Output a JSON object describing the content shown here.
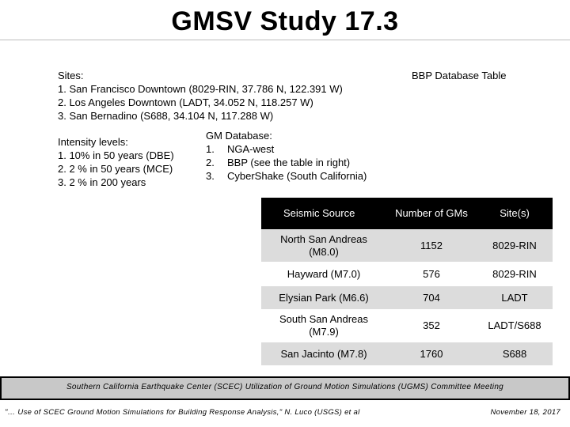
{
  "title": "GMSV Study 17.3",
  "sites": {
    "heading": "Sites:",
    "items": [
      "1. San Francisco Downtown (8029-RIN, 37.786 N, 122.391 W)",
      "2. Los Angeles Downtown (LADT, 34.052 N, 118.257 W)",
      "3. San Bernadino (S688, 34.104 N, 117.288 W)"
    ]
  },
  "intensity": {
    "heading": "Intensity levels:",
    "items": [
      "1. 10% in 50 years (DBE)",
      "2. 2 % in 50 years (MCE)",
      "3. 2 % in 200 years"
    ]
  },
  "gm_database": {
    "heading": "GM Database:",
    "items": [
      {
        "num": "1.",
        "text": "NGA-west"
      },
      {
        "num": "2.",
        "text": "BBP (see the table in right)"
      },
      {
        "num": "3.",
        "text": "CyberShake (South California)"
      }
    ]
  },
  "bbp_table": {
    "label": "BBP Database Table",
    "headers": [
      "Seismic Source",
      "Number of GMs",
      "Site(s)"
    ],
    "rows": [
      [
        "North San Andreas (M8.0)",
        "1152",
        "8029-RIN"
      ],
      [
        "Hayward (M7.0)",
        "576",
        "8029-RIN"
      ],
      [
        "Elysian Park (M6.6)",
        "704",
        "LADT"
      ],
      [
        "South San Andreas (M7.9)",
        "352",
        "LADT/S688"
      ],
      [
        "San Jacinto (M7.8)",
        "1760",
        "S688"
      ]
    ]
  },
  "footer": {
    "meeting": "Southern California Earthquake Center (SCEC) Utilization of Ground Motion Simulations (UGMS) Committee Meeting",
    "citation": "\"… Use of SCEC Ground Motion Simulations for Building Response Analysis,\" N. Luco (USGS) et al",
    "date": "November 18, 2017"
  }
}
